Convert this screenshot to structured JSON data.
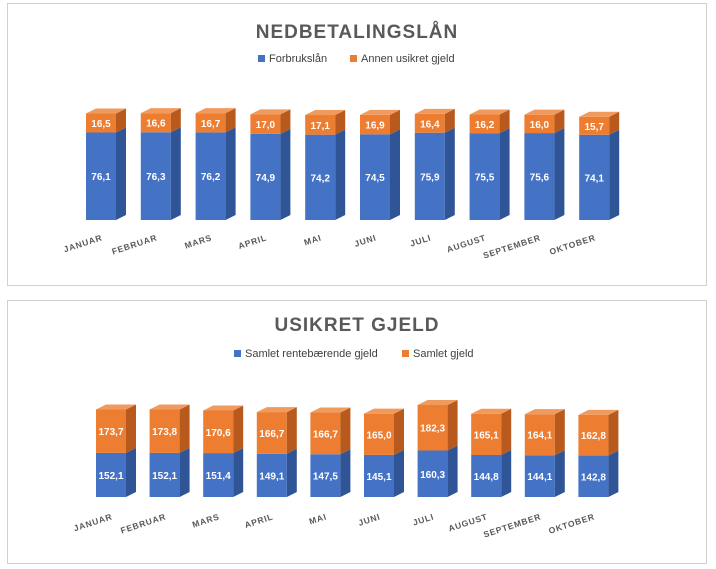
{
  "colors": {
    "blue": "#4472c4",
    "blue_side": "#2f5597",
    "blue_top": "#6a8fd6",
    "orange": "#ed7d31",
    "orange_side": "#b85a1d",
    "orange_top": "#f19a5e"
  },
  "chart_data": [
    {
      "type": "bar",
      "stacked": true,
      "three_d": true,
      "title": "NEDBETALINGSLÅN",
      "legend_position": "top",
      "categories": [
        "JANUAR",
        "FEBRUAR",
        "MARS",
        "APRIL",
        "MAI",
        "JUNI",
        "JULI",
        "AUGUST",
        "SEPTEMBER",
        "OKTOBER"
      ],
      "series": [
        {
          "name": "Forbrukslån",
          "values": [
            76.1,
            76.3,
            76.2,
            74.9,
            74.2,
            74.5,
            75.9,
            75.5,
            75.6,
            74.1
          ],
          "labels": [
            "76,1",
            "76,3",
            "76,2",
            "74,9",
            "74,2",
            "74,5",
            "75,9",
            "75,5",
            "75,6",
            "74,1"
          ]
        },
        {
          "name": "Annen usikret gjeld",
          "values": [
            16.5,
            16.6,
            16.7,
            17.0,
            17.1,
            16.9,
            16.4,
            16.2,
            16.0,
            15.7
          ],
          "labels": [
            "16,5",
            "16,6",
            "16,7",
            "17,0",
            "17,1",
            "16,9",
            "16,4",
            "16,2",
            "16,0",
            "15,7"
          ]
        }
      ]
    },
    {
      "type": "bar",
      "stacked": true,
      "three_d": true,
      "title": "USIKRET GJELD",
      "legend_position": "top",
      "categories": [
        "JANUAR",
        "FEBRUAR",
        "MARS",
        "APRIL",
        "MAI",
        "JUNI",
        "JULI",
        "AUGUST",
        "SEPTEMBER",
        "OKTOBER"
      ],
      "series": [
        {
          "name": "Samlet rentebærende gjeld",
          "values": [
            152.1,
            152.1,
            151.4,
            149.1,
            147.5,
            145.1,
            160.3,
            144.8,
            144.1,
            142.8
          ],
          "labels": [
            "152,1",
            "152,1",
            "151,4",
            "149,1",
            "147,5",
            "145,1",
            "160,3",
            "144,8",
            "144,1",
            "142,8"
          ]
        },
        {
          "name": "Samlet gjeld",
          "values": [
            173.7,
            173.8,
            170.6,
            166.7,
            166.7,
            165.0,
            182.3,
            165.1,
            164.1,
            162.8
          ],
          "labels": [
            "173,7",
            "173,8",
            "170,6",
            "166,7",
            "166,7",
            "165,0",
            "182,3",
            "165,1",
            "164,1",
            "162,8"
          ]
        }
      ]
    }
  ]
}
